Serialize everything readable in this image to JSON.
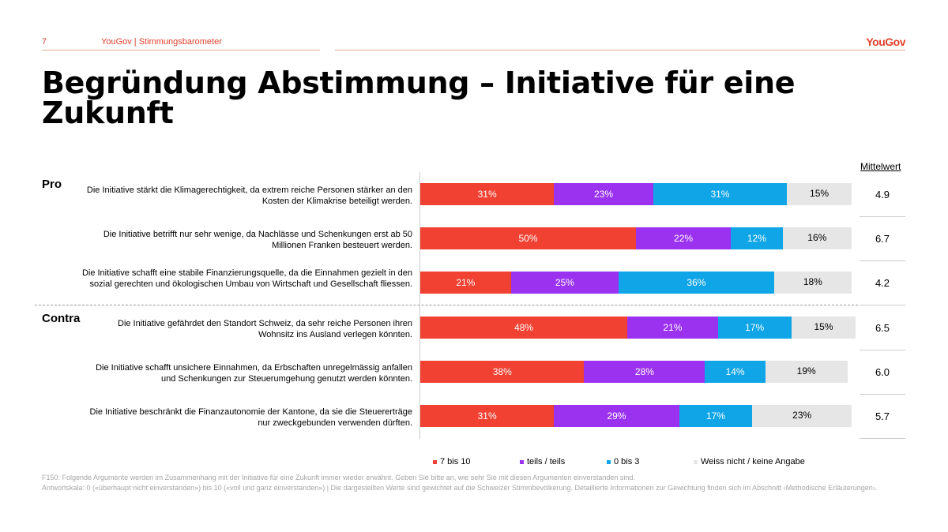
{
  "header": {
    "page": "7",
    "source": "YouGov | Stimmungsbarometer",
    "logo": "YouGov"
  },
  "title": "Begründung Abstimmung – Initiative für eine Zukunft",
  "groups": {
    "pro": "Pro",
    "contra": "Contra"
  },
  "mean_header": "Mittelwert",
  "chart_data": {
    "type": "bar",
    "orientation": "horizontal",
    "stacked": true,
    "xlim": [
      0,
      100
    ],
    "categories": [
      "Die Initiative stärkt die Klimagerechtigkeit, da extrem reiche Personen stärker an den Kosten der Klimakrise beteiligt werden.",
      "Die Initiative betrifft nur sehr wenige, da Nachlässe und Schenkungen erst ab 50 Millionen Franken besteuert werden.",
      "Die Initiative schafft eine stabile Finanzierungsquelle, da die Einnahmen gezielt in den sozial gerechten und ökologischen Umbau von Wirtschaft und Gesellschaft fliessen.",
      "Die Initiative gefährdet den Standort Schweiz, da sehr reiche Personen ihren Wohnsitz ins Ausland verlegen könnten.",
      "Die Initiative schafft unsichere Einnahmen, da Erbschaften unregelmässig anfallen und Schenkungen zur Steuerumgehung genutzt werden könnten.",
      "Die Initiative beschränkt die Finanzautonomie der Kantone, da sie die Steuererträge nur zweckgebunden verwenden dürften."
    ],
    "series": [
      {
        "name": "7 bis 10",
        "color": "#f04132",
        "values": [
          31,
          50,
          21,
          48,
          38,
          31
        ]
      },
      {
        "name": "teils / teils",
        "color": "#9b32f0",
        "values": [
          23,
          22,
          25,
          21,
          28,
          29
        ]
      },
      {
        "name": "0 bis 3",
        "color": "#10a5e6",
        "values": [
          31,
          12,
          36,
          17,
          14,
          17
        ]
      },
      {
        "name": "Weiss nicht / keine Angabe",
        "color": "#e6e6e6",
        "values": [
          15,
          16,
          18,
          15,
          19,
          23
        ]
      }
    ],
    "means": [
      "4.9",
      "6.7",
      "4.2",
      "6.5",
      "6.0",
      "5.7"
    ],
    "legend": "bottom"
  },
  "notes": [
    "F150: Folgende Argumente werden im Zusammenhang mit der Initiative für eine Zukunft immer wieder erwähnt. Geben Sie bitte an, wie sehr Sie mit diesen Argumenten einverstanden sind.",
    "Antwortskala: 0 («überhaupt nicht einverstanden») bis 10 («voll und ganz einverstanden») | Die dargestellten Werte sind gewichtet auf die Schweizer Stimmbevölkerung. Detaillierte Informationen zur Gewichtung finden sich im Abschnitt ‹Methodische Erläuterungen›."
  ]
}
